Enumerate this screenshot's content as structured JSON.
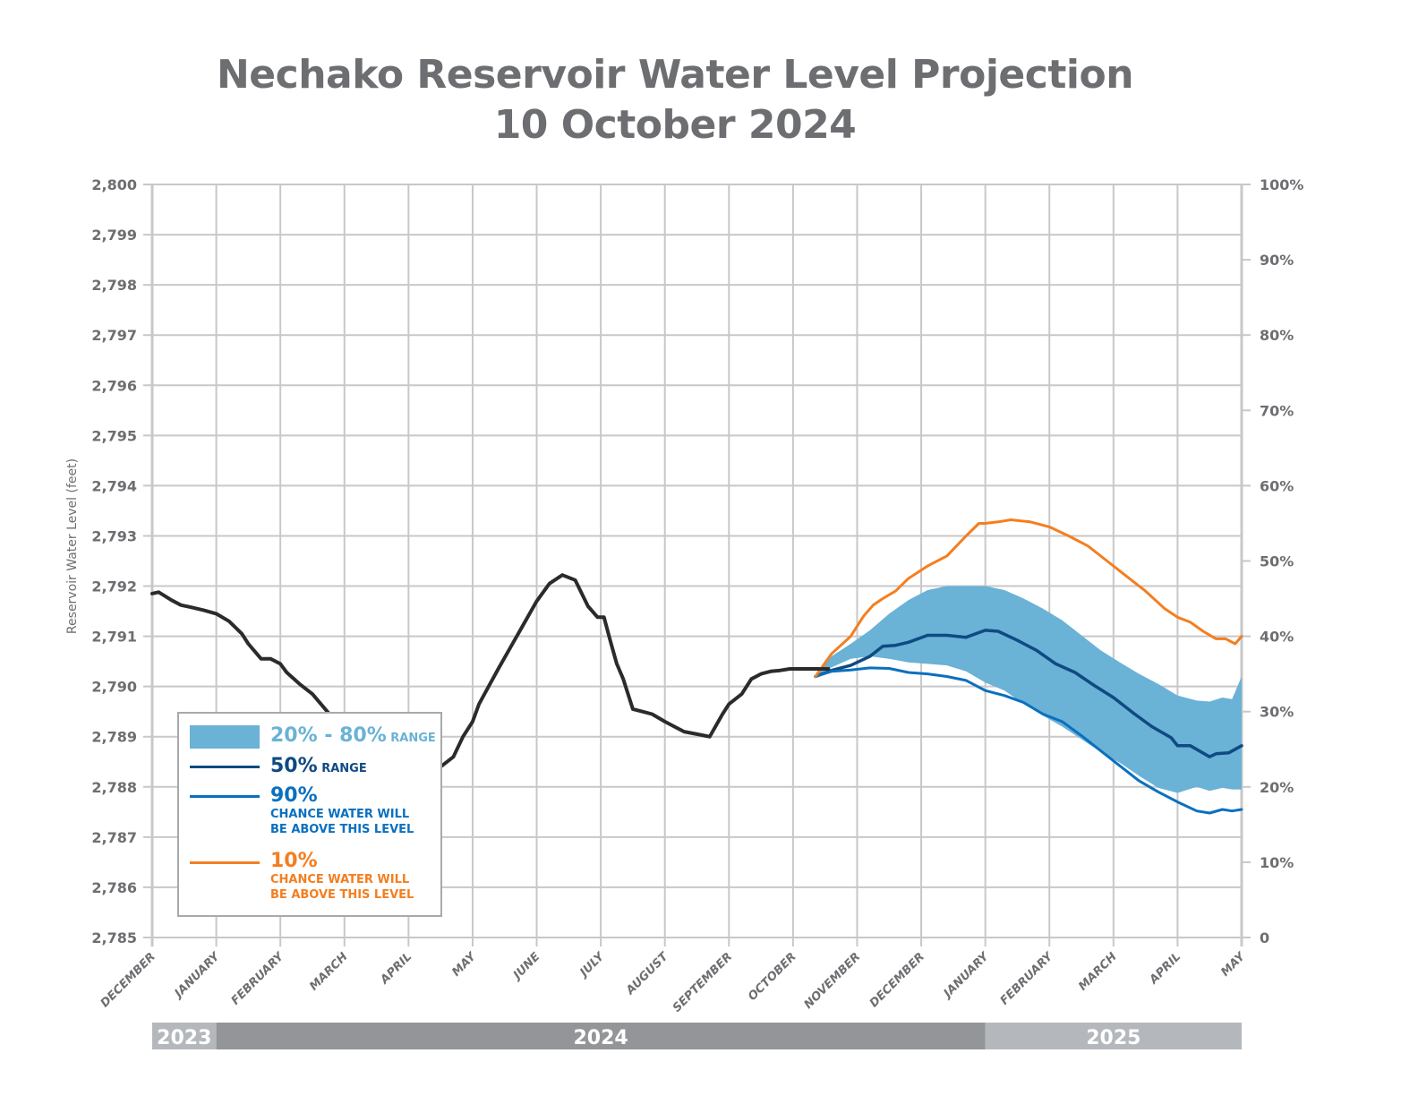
{
  "title_line1": "Nechako Reservoir Water Level Projection",
  "title_line2": "10 October 2024",
  "colors": {
    "historical": "#2b2b2b",
    "median": "#0f4a82",
    "p90": "#0a70bf",
    "p10": "#f47e20",
    "band": "#6ab2d6",
    "grid": "#c8c8ca",
    "axis_text": "#6d6e71",
    "year_2023": "#b4b8bc",
    "year_2024": "#939598",
    "year_2025": "#b4b8bc"
  },
  "legend": {
    "band": {
      "big": "20% - 80%",
      "small": " RANGE"
    },
    "median": {
      "big": "50%",
      "small": " RANGE"
    },
    "p90": {
      "big": "90%",
      "line1": "CHANCE WATER WILL",
      "line2": "BE ABOVE THIS LEVEL"
    },
    "p10": {
      "big": "10%",
      "line1": "CHANCE WATER WILL",
      "line2": "BE ABOVE THIS LEVEL"
    }
  },
  "years": [
    {
      "label": "2023",
      "from": 0,
      "to": 1
    },
    {
      "label": "2024",
      "from": 1,
      "to": 13
    },
    {
      "label": "2025",
      "from": 13,
      "to": 17
    }
  ],
  "chart_data": {
    "type": "line",
    "title": "Nechako Reservoir Water Level Projection 10 October 2024",
    "xlabel": "",
    "ylabel": "Reservoir Water Level (feet)",
    "y2label": "",
    "ylim": [
      2785,
      2800
    ],
    "y2lim": [
      0,
      100
    ],
    "grid": true,
    "legend_position": "bottom-left",
    "x_unit": "months since 1 Dec 2023",
    "categories": [
      "DECEMBER",
      "JANUARY",
      "FEBRUARY",
      "MARCH",
      "APRIL",
      "MAY",
      "JUNE",
      "JULY",
      "AUGUST",
      "SEPTEMBER",
      "OCTOBER",
      "NOVEMBER",
      "DECEMBER",
      "JANUARY",
      "FEBRUARY",
      "MARCH",
      "APRIL",
      "MAY"
    ],
    "yticks": [
      "2,785",
      "2,786",
      "2,787",
      "2,788",
      "2,789",
      "2,790",
      "2,791",
      "2,792",
      "2,793",
      "2,794",
      "2,795",
      "2,796",
      "2,797",
      "2,798",
      "2,799",
      "2,800"
    ],
    "y2ticks": [
      "0",
      "10%",
      "20%",
      "30%",
      "40%",
      "50%",
      "60%",
      "70%",
      "80%",
      "90%",
      "100%"
    ],
    "series": [
      {
        "name": "Historical",
        "x": [
          0,
          0.1,
          0.2,
          0.3,
          0.45,
          0.6,
          0.8,
          1.0,
          1.2,
          1.4,
          1.5,
          1.7,
          1.85,
          2.0,
          2.1,
          2.3,
          2.5,
          2.7,
          2.9,
          3.1,
          3.3,
          3.5,
          3.7,
          3.9,
          4.1,
          4.3,
          4.5,
          4.7,
          4.85,
          5.0,
          5.1,
          5.25,
          5.4,
          5.6,
          5.8,
          6.0,
          6.2,
          6.4,
          6.6,
          6.8,
          6.95,
          7.05,
          7.15,
          7.25,
          7.35,
          7.5,
          7.65,
          7.8,
          8.0,
          8.15,
          8.3,
          8.5,
          8.7,
          8.9,
          9.0,
          9.2,
          9.35,
          9.5,
          9.65,
          9.8,
          9.95,
          10.05,
          10.15,
          10.3,
          10.45,
          10.55
        ],
        "values": [
          2791.85,
          2791.88,
          2791.8,
          2791.72,
          2791.62,
          2791.58,
          2791.52,
          2791.45,
          2791.3,
          2791.05,
          2790.85,
          2790.55,
          2790.55,
          2790.45,
          2790.28,
          2790.05,
          2789.85,
          2789.55,
          2789.25,
          2788.95,
          2788.65,
          2788.48,
          2788.42,
          2788.38,
          2788.38,
          2788.3,
          2788.4,
          2788.6,
          2789.0,
          2789.3,
          2789.65,
          2790.0,
          2790.35,
          2790.8,
          2791.25,
          2791.7,
          2792.05,
          2792.22,
          2792.12,
          2791.6,
          2791.38,
          2791.38,
          2790.9,
          2790.45,
          2790.15,
          2789.55,
          2789.5,
          2789.45,
          2789.3,
          2789.2,
          2789.1,
          2789.05,
          2789.0,
          2789.45,
          2789.65,
          2789.85,
          2790.15,
          2790.25,
          2790.3,
          2790.32,
          2790.35,
          2790.35,
          2790.35,
          2790.35,
          2790.35,
          2790.35
        ]
      },
      {
        "name": "20% - 80% range (upper)",
        "x": [
          10.35,
          10.6,
          10.9,
          11.2,
          11.5,
          11.8,
          12.1,
          12.4,
          12.7,
          13.0,
          13.3,
          13.6,
          13.9,
          14.2,
          14.5,
          14.8,
          15.1,
          15.4,
          15.7,
          16.0,
          16.3,
          16.5,
          16.7,
          16.85,
          17.0
        ],
        "values": [
          2790.2,
          2790.6,
          2790.85,
          2791.12,
          2791.45,
          2791.72,
          2791.92,
          2792.0,
          2792.0,
          2792.0,
          2791.92,
          2791.75,
          2791.55,
          2791.32,
          2791.02,
          2790.72,
          2790.48,
          2790.25,
          2790.05,
          2789.82,
          2789.72,
          2789.7,
          2789.78,
          2789.75,
          2790.2
        ]
      },
      {
        "name": "20% - 80% range (lower)",
        "x": [
          10.35,
          10.6,
          10.9,
          11.2,
          11.5,
          11.8,
          12.1,
          12.4,
          12.7,
          13.0,
          13.3,
          13.6,
          13.9,
          14.2,
          14.5,
          14.8,
          15.1,
          15.4,
          15.7,
          16.0,
          16.3,
          16.5,
          16.7,
          16.85,
          17.0
        ],
        "values": [
          2790.2,
          2790.38,
          2790.55,
          2790.6,
          2790.55,
          2790.48,
          2790.45,
          2790.42,
          2790.3,
          2790.08,
          2789.92,
          2789.65,
          2789.42,
          2789.2,
          2788.95,
          2788.7,
          2788.48,
          2788.22,
          2787.98,
          2787.88,
          2788.0,
          2787.92,
          2787.98,
          2787.95,
          2787.95
        ]
      },
      {
        "name": "50% range",
        "x": [
          10.35,
          10.6,
          10.9,
          11.2,
          11.4,
          11.6,
          11.8,
          12.1,
          12.4,
          12.7,
          13.0,
          13.2,
          13.5,
          13.8,
          14.1,
          14.4,
          14.7,
          15.0,
          15.3,
          15.6,
          15.9,
          16.0,
          16.2,
          16.5,
          16.6,
          16.8,
          17.0
        ],
        "values": [
          2790.2,
          2790.32,
          2790.42,
          2790.6,
          2790.8,
          2790.82,
          2790.88,
          2791.02,
          2791.02,
          2790.98,
          2791.12,
          2791.1,
          2790.92,
          2790.72,
          2790.45,
          2790.28,
          2790.02,
          2789.78,
          2789.48,
          2789.2,
          2788.98,
          2788.82,
          2788.82,
          2788.6,
          2788.66,
          2788.68,
          2788.82
        ]
      },
      {
        "name": "90% chance water will be above this level",
        "x": [
          10.35,
          10.6,
          10.9,
          11.2,
          11.5,
          11.8,
          12.1,
          12.4,
          12.7,
          13.0,
          13.3,
          13.6,
          13.9,
          14.2,
          14.5,
          14.8,
          15.1,
          15.4,
          15.7,
          16.0,
          16.3,
          16.5,
          16.7,
          16.85,
          17.0
        ],
        "values": [
          2790.2,
          2790.3,
          2790.33,
          2790.37,
          2790.36,
          2790.28,
          2790.25,
          2790.2,
          2790.12,
          2789.92,
          2789.82,
          2789.68,
          2789.45,
          2789.3,
          2789.02,
          2788.72,
          2788.42,
          2788.12,
          2787.9,
          2787.7,
          2787.52,
          2787.48,
          2787.55,
          2787.52,
          2787.55
        ]
      },
      {
        "name": "10% chance water will be above this level",
        "x": [
          10.35,
          10.6,
          10.9,
          11.1,
          11.25,
          11.4,
          11.6,
          11.8,
          12.1,
          12.4,
          12.7,
          12.9,
          13.0,
          13.2,
          13.4,
          13.7,
          14.0,
          14.3,
          14.6,
          14.9,
          15.2,
          15.5,
          15.8,
          16.0,
          16.2,
          16.4,
          16.6,
          16.75,
          16.9,
          17.0
        ],
        "values": [
          2790.2,
          2790.65,
          2791.0,
          2791.4,
          2791.62,
          2791.75,
          2791.9,
          2792.15,
          2792.4,
          2792.6,
          2793.0,
          2793.25,
          2793.25,
          2793.28,
          2793.32,
          2793.28,
          2793.18,
          2793.0,
          2792.8,
          2792.5,
          2792.2,
          2791.9,
          2791.55,
          2791.38,
          2791.28,
          2791.1,
          2790.95,
          2790.95,
          2790.85,
          2791.0
        ]
      }
    ]
  }
}
